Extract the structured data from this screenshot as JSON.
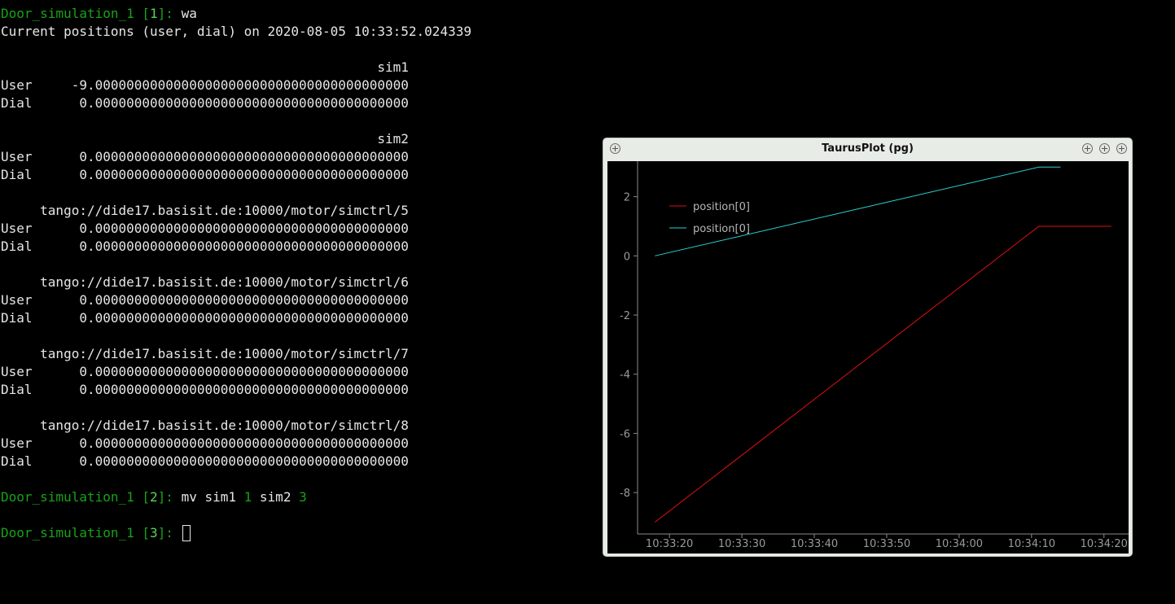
{
  "terminal": {
    "prompt1": {
      "label": "Door_simulation_1 [",
      "num": "1",
      "close": "]: ",
      "command": "wa"
    },
    "header": "Current positions (user, dial) on 2020-08-05 10:33:52.024339",
    "blocks": [
      {
        "name": "sim1",
        "user": "-9.0000000000000000000000000000000000000000",
        "dial": "0.0000000000000000000000000000000000000000"
      },
      {
        "name": "sim2",
        "user": "0.0000000000000000000000000000000000000000",
        "dial": "0.0000000000000000000000000000000000000000"
      },
      {
        "name": "tango://dide17.basisit.de:10000/motor/simctrl/5",
        "user": "0.0000000000000000000000000000000000000000",
        "dial": "0.0000000000000000000000000000000000000000"
      },
      {
        "name": "tango://dide17.basisit.de:10000/motor/simctrl/6",
        "user": "0.0000000000000000000000000000000000000000",
        "dial": "0.0000000000000000000000000000000000000000"
      },
      {
        "name": "tango://dide17.basisit.de:10000/motor/simctrl/7",
        "user": "0.0000000000000000000000000000000000000000",
        "dial": "0.0000000000000000000000000000000000000000"
      },
      {
        "name": "tango://dide17.basisit.de:10000/motor/simctrl/8",
        "user": "0.0000000000000000000000000000000000000000",
        "dial": "0.0000000000000000000000000000000000000000"
      }
    ],
    "row_labels": {
      "user": "User",
      "dial": "Dial"
    },
    "prompt2": {
      "label": "Door_simulation_1 [",
      "num": "2",
      "close": "]: ",
      "cmd": "mv sim1 ",
      "arg1": "1",
      "cmd2": " sim2 ",
      "arg2": "3"
    },
    "prompt3": {
      "label": "Door_simulation_1 [",
      "num": "3",
      "close": "]: "
    }
  },
  "plot_window": {
    "title": "TaurusPlot (pg)"
  },
  "chart_data": {
    "type": "line",
    "title": "",
    "xlabel": "",
    "ylabel": "",
    "xlim": [
      "10:33:15.6",
      "10:34:23.4"
    ],
    "ylim": [
      -9.4,
      3.2
    ],
    "x_ticks": [
      "10:33:20",
      "10:33:30",
      "10:33:40",
      "10:33:50",
      "10:34:00",
      "10:34:10",
      "10:34:20"
    ],
    "y_ticks": [
      2,
      0,
      -2,
      -4,
      -6,
      -8
    ],
    "legend_position": "top-left",
    "grid": false,
    "series": [
      {
        "name": "position[0]",
        "color": "#e01010",
        "points": [
          [
            "10:33:18",
            -9
          ],
          [
            "10:34:11",
            1
          ],
          [
            "10:34:21",
            1
          ]
        ]
      },
      {
        "name": "position[0]",
        "color": "#2ad0d0",
        "points": [
          [
            "10:33:18",
            0
          ],
          [
            "10:34:11",
            3
          ],
          [
            "10:34:14",
            3
          ]
        ]
      }
    ]
  }
}
